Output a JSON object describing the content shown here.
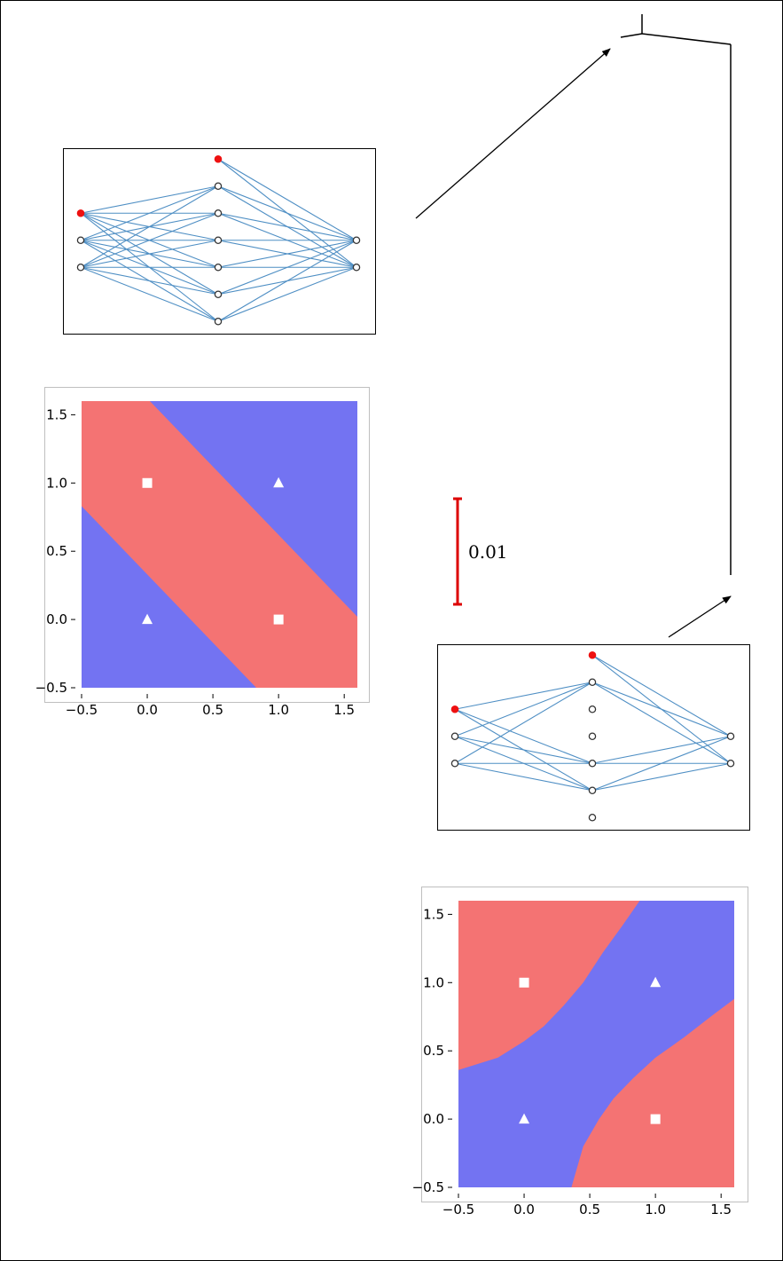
{
  "colors": {
    "edge": "#4f8fc4",
    "node_fill": "#ffffff",
    "node_stroke": "#333333",
    "bias_node": "#ee1111",
    "region_red": "#f47373",
    "region_blue": "#7373f2",
    "scale_bar": "#dd0000",
    "marker": "#ffffff"
  },
  "scale_bar": {
    "label": "0.01"
  },
  "networks": [
    {
      "id": "network-1",
      "layers": [
        {
          "bias": true,
          "nodes": 2
        },
        {
          "bias": true,
          "nodes": 6
        },
        {
          "bias": false,
          "nodes": 2
        }
      ],
      "hidden_active": [
        true,
        true,
        true,
        true,
        true,
        true
      ]
    },
    {
      "id": "network-2",
      "layers": [
        {
          "bias": true,
          "nodes": 2
        },
        {
          "bias": true,
          "nodes": 6
        },
        {
          "bias": false,
          "nodes": 2
        }
      ],
      "hidden_active": [
        true,
        false,
        false,
        true,
        true,
        false
      ]
    }
  ],
  "chart_data": [
    {
      "type": "heatmap",
      "title": "",
      "xlabel": "",
      "ylabel": "",
      "xlim": [
        -0.5,
        1.6
      ],
      "ylim": [
        -0.5,
        1.6
      ],
      "xticks": [
        "−0.5",
        "0.0",
        "0.5",
        "1.0",
        "1.5"
      ],
      "yticks": [
        "−0.5",
        "0.0",
        "0.5",
        "1.0",
        "1.5"
      ],
      "grid": false,
      "regions": "red diagonal band between x+y≈0.5 and x+y≈1.5; blue elsewhere",
      "points": [
        {
          "x": 0,
          "y": 1,
          "marker": "square"
        },
        {
          "x": 1,
          "y": 1,
          "marker": "triangle"
        },
        {
          "x": 0,
          "y": 0,
          "marker": "triangle"
        },
        {
          "x": 1,
          "y": 0,
          "marker": "square"
        }
      ]
    },
    {
      "type": "heatmap",
      "title": "",
      "xlabel": "",
      "ylabel": "",
      "xlim": [
        -0.5,
        1.6
      ],
      "ylim": [
        -0.5,
        1.6
      ],
      "xticks": [
        "−0.5",
        "0.0",
        "0.5",
        "1.0",
        "1.5"
      ],
      "yticks": [
        "−0.5",
        "0.0",
        "0.5",
        "1.0",
        "1.5"
      ],
      "grid": false,
      "regions": "blue curved diagonal band through (0,0) and (1,1); red in upper-left and lower-right corners",
      "points": [
        {
          "x": 0,
          "y": 1,
          "marker": "square"
        },
        {
          "x": 1,
          "y": 1,
          "marker": "triangle"
        },
        {
          "x": 0,
          "y": 0,
          "marker": "triangle"
        },
        {
          "x": 1,
          "y": 0,
          "marker": "square"
        }
      ]
    }
  ]
}
